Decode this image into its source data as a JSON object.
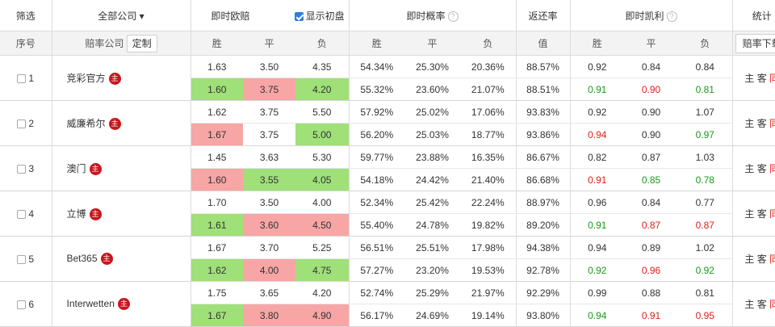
{
  "header": {
    "filter": "筛选",
    "all_companies": "全部公司",
    "live_euro": "即时欧赔",
    "show_initial": "显示初盘",
    "live_prob": "即时概率",
    "return_rate": "返还率",
    "live_kelly": "即时凯利",
    "stats": "统计"
  },
  "subheader": {
    "index": "序号",
    "odds_company": "赔率公司",
    "customize": "定制",
    "win": "胜",
    "draw": "平",
    "lose": "负",
    "value": "值",
    "download": "赔率下载"
  },
  "badge": "主",
  "stats_links": {
    "home": "主",
    "away": "客",
    "same": "同"
  },
  "rows": [
    {
      "idx": "1",
      "company": "竞彩官方",
      "top": {
        "w": "1.63",
        "d": "3.50",
        "l": "4.35",
        "pw": "54.34%",
        "pd": "25.30%",
        "pl": "20.36%",
        "ret": "88.57%",
        "kw": "0.92",
        "kd": "0.84",
        "kl": "0.84"
      },
      "bot": {
        "w": "1.60",
        "d": "3.75",
        "l": "4.20",
        "pw": "55.32%",
        "pd": "23.60%",
        "pl": "21.07%",
        "ret": "88.51%",
        "kw": "0.91",
        "kd": "0.90",
        "kl": "0.81"
      },
      "odds_colors": [
        "green",
        "red",
        "green"
      ],
      "kelly_colors": [
        "green",
        "red",
        "green"
      ]
    },
    {
      "idx": "2",
      "company": "威廉希尔",
      "top": {
        "w": "1.62",
        "d": "3.75",
        "l": "5.50",
        "pw": "57.92%",
        "pd": "25.02%",
        "pl": "17.06%",
        "ret": "93.83%",
        "kw": "0.92",
        "kd": "0.90",
        "kl": "1.07"
      },
      "bot": {
        "w": "1.67",
        "d": "3.75",
        "l": "5.00",
        "pw": "56.20%",
        "pd": "25.03%",
        "pl": "18.77%",
        "ret": "93.86%",
        "kw": "0.94",
        "kd": "0.90",
        "kl": "0.97"
      },
      "odds_colors": [
        "red",
        "none",
        "green"
      ],
      "kelly_colors": [
        "red",
        "none",
        "green"
      ]
    },
    {
      "idx": "3",
      "company": "澳门",
      "top": {
        "w": "1.45",
        "d": "3.63",
        "l": "5.30",
        "pw": "59.77%",
        "pd": "23.88%",
        "pl": "16.35%",
        "ret": "86.67%",
        "kw": "0.82",
        "kd": "0.87",
        "kl": "1.03"
      },
      "bot": {
        "w": "1.60",
        "d": "3.55",
        "l": "4.05",
        "pw": "54.18%",
        "pd": "24.42%",
        "pl": "21.40%",
        "ret": "86.68%",
        "kw": "0.91",
        "kd": "0.85",
        "kl": "0.78"
      },
      "odds_colors": [
        "red",
        "green",
        "green"
      ],
      "kelly_colors": [
        "red",
        "green",
        "green"
      ]
    },
    {
      "idx": "4",
      "company": "立博",
      "top": {
        "w": "1.70",
        "d": "3.50",
        "l": "4.00",
        "pw": "52.34%",
        "pd": "25.42%",
        "pl": "22.24%",
        "ret": "88.97%",
        "kw": "0.96",
        "kd": "0.84",
        "kl": "0.77"
      },
      "bot": {
        "w": "1.61",
        "d": "3.60",
        "l": "4.50",
        "pw": "55.40%",
        "pd": "24.78%",
        "pl": "19.82%",
        "ret": "89.20%",
        "kw": "0.91",
        "kd": "0.87",
        "kl": "0.87"
      },
      "odds_colors": [
        "green",
        "red",
        "red"
      ],
      "kelly_colors": [
        "green",
        "red",
        "red"
      ]
    },
    {
      "idx": "5",
      "company": "Bet365",
      "top": {
        "w": "1.67",
        "d": "3.70",
        "l": "5.25",
        "pw": "56.51%",
        "pd": "25.51%",
        "pl": "17.98%",
        "ret": "94.38%",
        "kw": "0.94",
        "kd": "0.89",
        "kl": "1.02"
      },
      "bot": {
        "w": "1.62",
        "d": "4.00",
        "l": "4.75",
        "pw": "57.27%",
        "pd": "23.20%",
        "pl": "19.53%",
        "ret": "92.78%",
        "kw": "0.92",
        "kd": "0.96",
        "kl": "0.92"
      },
      "odds_colors": [
        "green",
        "red",
        "green"
      ],
      "kelly_colors": [
        "green",
        "red",
        "green"
      ]
    },
    {
      "idx": "6",
      "company": "Interwetten",
      "top": {
        "w": "1.75",
        "d": "3.65",
        "l": "4.20",
        "pw": "52.74%",
        "pd": "25.29%",
        "pl": "21.97%",
        "ret": "92.29%",
        "kw": "0.99",
        "kd": "0.88",
        "kl": "0.81"
      },
      "bot": {
        "w": "1.67",
        "d": "3.80",
        "l": "4.90",
        "pw": "56.17%",
        "pd": "24.69%",
        "pl": "19.14%",
        "ret": "93.80%",
        "kw": "0.94",
        "kd": "0.91",
        "kl": "0.95"
      },
      "odds_colors": [
        "green",
        "red",
        "red"
      ],
      "kelly_colors": [
        "green",
        "red",
        "red"
      ]
    }
  ],
  "colors": {
    "green_bg": "#9fe079",
    "red_bg": "#f7a5a5",
    "green_text": "#1a9a1a",
    "red_text": "#e0201a"
  }
}
